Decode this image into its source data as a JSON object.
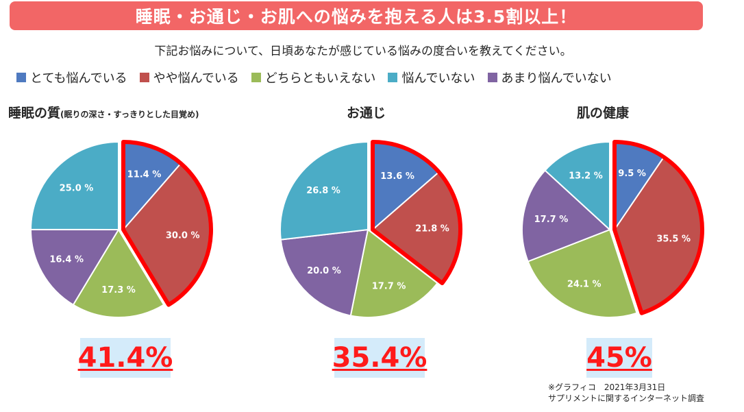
{
  "banner": {
    "title": "睡眠・お通じ・お肌への悩みを抱える人は3.5割以上！"
  },
  "question": "下記お悩みについて、日頃あなたが感じている悩みの度合いを教えてください。",
  "colors": {
    "banner": "#f26666",
    "highlight": "#ff0000",
    "total_text": "#ff1a1a",
    "total_bg": "#d4ebfa"
  },
  "legend": [
    {
      "label": "とても悩んでいる",
      "color": "#4f7ac0"
    },
    {
      "label": "やや悩んでいる",
      "color": "#c0504d"
    },
    {
      "label": "どちらともいえない",
      "color": "#9bbb59"
    },
    {
      "label": "悩んでいない",
      "color": "#4bacc6"
    },
    {
      "label": "あまり悩んでいない",
      "color": "#8064a2"
    }
  ],
  "chart_data": [
    {
      "type": "pie",
      "title": "睡眠の質",
      "subtitle": "(眠りの深さ・すっきりとした目覚め)",
      "slices": [
        {
          "category": "とても悩んでいる",
          "value": 11.4,
          "label": "11.4 %"
        },
        {
          "category": "やや悩んでいる",
          "value": 30.0,
          "label": "30.0 %"
        },
        {
          "category": "どちらともいえない",
          "value": 17.3,
          "label": "17.3 %"
        },
        {
          "category": "あまり悩んでいない",
          "value": 16.4,
          "label": "16.4 %"
        },
        {
          "category": "悩んでいない",
          "value": 25.0,
          "label": "25.0 %"
        }
      ],
      "highlight_total": "41.4%"
    },
    {
      "type": "pie",
      "title": "お通じ",
      "subtitle": "",
      "slices": [
        {
          "category": "とても悩んでいる",
          "value": 13.6,
          "label": "13.6 %"
        },
        {
          "category": "やや悩んでいる",
          "value": 21.8,
          "label": "21.8 %"
        },
        {
          "category": "どちらともいえない",
          "value": 17.7,
          "label": "17.7 %"
        },
        {
          "category": "あまり悩んでいない",
          "value": 20.0,
          "label": "20.0 %"
        },
        {
          "category": "悩んでいない",
          "value": 26.8,
          "label": "26.8 %"
        }
      ],
      "highlight_total": "35.4%"
    },
    {
      "type": "pie",
      "title": "肌の健康",
      "subtitle": "",
      "slices": [
        {
          "category": "とても悩んでいる",
          "value": 9.5,
          "label": "9.5 %"
        },
        {
          "category": "やや悩んでいる",
          "value": 35.5,
          "label": "35.5 %"
        },
        {
          "category": "どちらともいえない",
          "value": 24.1,
          "label": "24.1 %"
        },
        {
          "category": "あまり悩んでいない",
          "value": 17.7,
          "label": "17.7 %"
        },
        {
          "category": "悩んでいない",
          "value": 13.2,
          "label": "13.2 %"
        }
      ],
      "highlight_total": "45%"
    }
  ],
  "footnote": {
    "line1": "※グラフィコ　2021年3月31日",
    "line2": "サプリメントに関するインターネット調査"
  }
}
